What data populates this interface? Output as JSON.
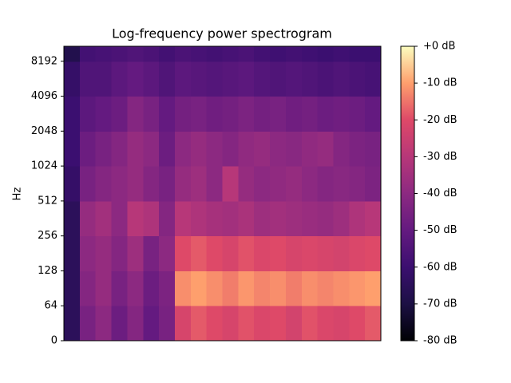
{
  "chart_data": {
    "type": "heatmap",
    "title": "Log-frequency power spectrogram",
    "y_label": "Hz",
    "colormap": "magma",
    "ylim": [
      0,
      11025
    ],
    "yticks": [
      0,
      64,
      128,
      256,
      512,
      1024,
      2048,
      4096,
      8192
    ],
    "bins": [
      0,
      64,
      128,
      256,
      512,
      1024,
      2048,
      4096,
      8192,
      11025
    ],
    "clim": [
      -80,
      0
    ],
    "cticks": [
      {
        "value": 0,
        "label": "+0 dB"
      },
      {
        "value": -10,
        "label": "-10 dB"
      },
      {
        "value": -20,
        "label": "-20 dB"
      },
      {
        "value": -30,
        "label": "-30 dB"
      },
      {
        "value": -40,
        "label": "-40 dB"
      },
      {
        "value": -50,
        "label": "-50 dB"
      },
      {
        "value": -60,
        "label": "-60 dB"
      },
      {
        "value": -70,
        "label": "-70 dB"
      },
      {
        "value": -80,
        "label": "-80 dB"
      }
    ],
    "values": [
      [
        -65,
        -45,
        -40,
        -48,
        -42,
        -50,
        -45,
        -22,
        -18,
        -20,
        -22,
        -19,
        -21,
        -20,
        -23,
        -19,
        -21,
        -22,
        -20,
        -18
      ],
      [
        -65,
        -42,
        -38,
        -45,
        -40,
        -48,
        -44,
        -12,
        -10,
        -12,
        -14,
        -11,
        -13,
        -12,
        -14,
        -12,
        -13,
        -12,
        -11,
        -10
      ],
      [
        -65,
        -40,
        -38,
        -42,
        -36,
        -45,
        -40,
        -20,
        -18,
        -20,
        -22,
        -19,
        -21,
        -20,
        -22,
        -21,
        -22,
        -23,
        -21,
        -20
      ],
      [
        -65,
        -38,
        -35,
        -40,
        -30,
        -32,
        -42,
        -30,
        -32,
        -34,
        -35,
        -33,
        -36,
        -35,
        -36,
        -37,
        -38,
        -36,
        -32,
        -30
      ],
      [
        -62,
        -45,
        -42,
        -40,
        -38,
        -42,
        -45,
        -38,
        -36,
        -40,
        -30,
        -38,
        -40,
        -39,
        -38,
        -40,
        -42,
        -41,
        -42,
        -44
      ],
      [
        -60,
        -48,
        -45,
        -42,
        -38,
        -40,
        -48,
        -40,
        -38,
        -40,
        -42,
        -39,
        -38,
        -40,
        -41,
        -39,
        -38,
        -42,
        -44,
        -45
      ],
      [
        -60,
        -52,
        -50,
        -48,
        -42,
        -45,
        -50,
        -46,
        -45,
        -47,
        -46,
        -44,
        -46,
        -45,
        -47,
        -46,
        -48,
        -47,
        -48,
        -50
      ],
      [
        -62,
        -55,
        -55,
        -52,
        -50,
        -52,
        -55,
        -52,
        -53,
        -54,
        -53,
        -52,
        -54,
        -55,
        -54,
        -55,
        -56,
        -55,
        -56,
        -57
      ],
      [
        -68,
        -58,
        -57,
        -56,
        -55,
        -56,
        -58,
        -56,
        -57,
        -58,
        -57,
        -56,
        -58,
        -59,
        -58,
        -59,
        -60,
        -59,
        -60,
        -60
      ]
    ]
  }
}
